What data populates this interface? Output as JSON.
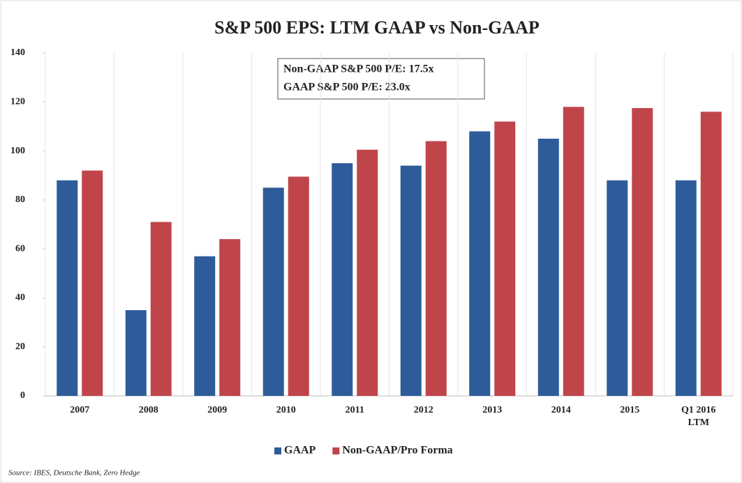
{
  "chart_data": {
    "type": "bar",
    "title": "S&P 500 EPS: LTM GAAP vs Non-GAAP",
    "categories": [
      "2007",
      "2008",
      "2009",
      "2010",
      "2011",
      "2012",
      "2013",
      "2014",
      "2015",
      "Q1 2016 LTM"
    ],
    "series": [
      {
        "name": "GAAP",
        "color": "#2e5c9a",
        "values": [
          88,
          35,
          57,
          85,
          95,
          94,
          108,
          105,
          88,
          88
        ]
      },
      {
        "name": "Non-GAAP/Pro Forma",
        "color": "#c0454a",
        "values": [
          92,
          71,
          64,
          89.5,
          100.5,
          104,
          112,
          118,
          117.5,
          116
        ]
      }
    ],
    "ylim": [
      0,
      140
    ],
    "yticks": [
      0,
      20,
      40,
      60,
      80,
      100,
      120,
      140
    ],
    "annotations": [
      {
        "text": "Non-GAAP S&P 500 P/E: 17.5x",
        "color": "#c0454a"
      },
      {
        "text": "GAAP S&P 500 P/E: 23.0x",
        "color": "#2e5c9a"
      }
    ],
    "legend": "bottom",
    "source": "Source: IBES, Deutsche Bank, Zero Hedge"
  }
}
